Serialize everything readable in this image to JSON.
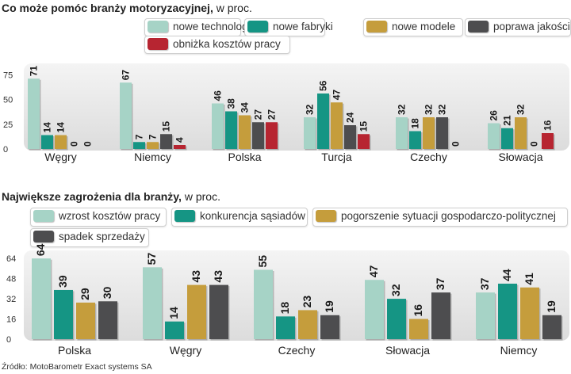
{
  "chart_data": [
    {
      "type": "bar",
      "title": "Co może pomóc branży motoryzacyjnej,",
      "subtitle": "w proc.",
      "categories": [
        "Węgry",
        "Niemcy",
        "Polska",
        "Turcja",
        "Czechy",
        "Słowacja"
      ],
      "series": [
        {
          "name": "nowe technologie",
          "color": "#a6d3c6",
          "values": [
            71,
            67,
            46,
            32,
            32,
            26
          ]
        },
        {
          "name": "nowe fabryki",
          "color": "#159584",
          "values": [
            14,
            7,
            38,
            56,
            18,
            21
          ]
        },
        {
          "name": "nowe modele",
          "color": "#c59d3c",
          "values": [
            14,
            7,
            34,
            47,
            32,
            32
          ]
        },
        {
          "name": "poprawa jakości",
          "color": "#4d4d4f",
          "values": [
            0,
            15,
            27,
            24,
            32,
            0
          ]
        },
        {
          "name": "obniżka kosztów pracy",
          "color": "#b72531",
          "values": [
            0,
            4,
            27,
            15,
            0,
            16
          ]
        }
      ],
      "yticks": [
        0,
        25,
        50,
        75
      ],
      "ylim": [
        0,
        80
      ],
      "grid": false
    },
    {
      "type": "bar",
      "title": "Największe zagrożenia dla branży,",
      "subtitle": "w proc.",
      "categories": [
        "Polska",
        "Węgry",
        "Czechy",
        "Słowacja",
        "Niemcy"
      ],
      "series": [
        {
          "name": "wzrost kosztów pracy",
          "color": "#a6d3c6",
          "values": [
            64,
            57,
            55,
            47,
            37
          ]
        },
        {
          "name": "konkurencja sąsiadów",
          "color": "#159584",
          "values": [
            39,
            14,
            18,
            32,
            44
          ]
        },
        {
          "name": "pogorszenie sytuacji gospodarczo-politycznej",
          "color": "#c59d3c",
          "values": [
            29,
            43,
            23,
            16,
            41
          ]
        },
        {
          "name": "spadek sprzedaży",
          "color": "#4d4d4f",
          "values": [
            30,
            43,
            19,
            37,
            19
          ]
        }
      ],
      "yticks": [
        0,
        16,
        32,
        48,
        64
      ],
      "ylim": [
        0,
        66
      ],
      "grid": false
    }
  ],
  "source": "Źródło: MotoBarometr Exact systems SA"
}
